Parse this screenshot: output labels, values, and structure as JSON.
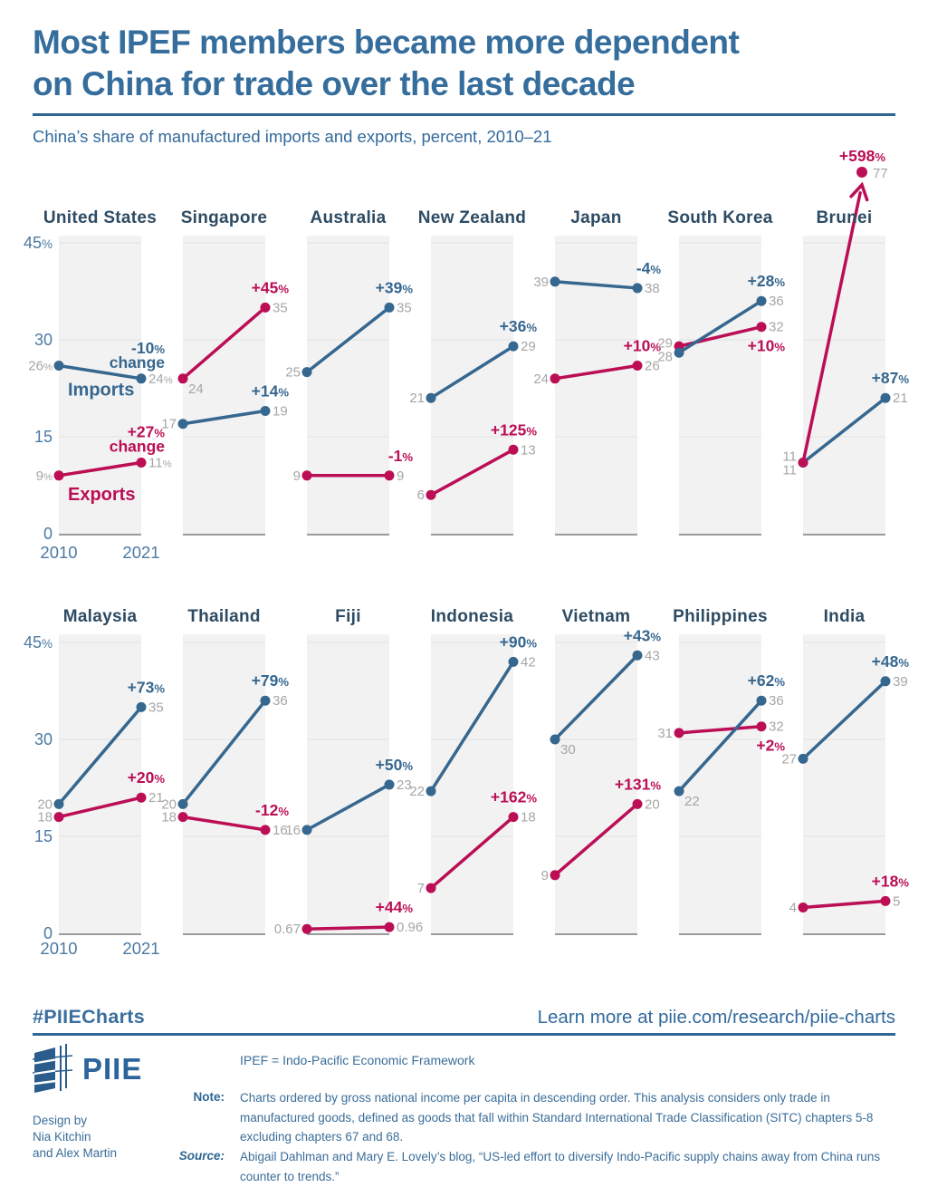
{
  "header": {
    "title_line1": "Most IPEF members became more dependent",
    "title_line2": "on China for trade over the last decade",
    "subtitle": "China’s share of manufactured imports and exports, percent, 2010–21"
  },
  "chart_data": {
    "type": "line",
    "subtype": "slope-small-multiples",
    "x": [
      "2010",
      "2021"
    ],
    "ylim": [
      0,
      45
    ],
    "unit": "percent",
    "grid": true,
    "axis": {
      "ticks": [
        45,
        30,
        15,
        0
      ],
      "tick_labels": [
        "45%",
        "30",
        "15",
        "0"
      ],
      "x_labels": [
        "2010",
        "2021"
      ]
    },
    "series_colors": {
      "imports": "#36678f",
      "exports": "#bb0e55"
    },
    "legend": {
      "imports": "Imports",
      "exports": "Exports"
    },
    "rows": [
      {
        "panels": [
          {
            "country": "United States",
            "imports": {
              "start": 26,
              "end": 24,
              "start_label": "26%",
              "end_label": "24%",
              "change": "-10%",
              "change_word": "change",
              "series_label": "Imports"
            },
            "exports": {
              "start": 9,
              "end": 11,
              "start_label": "9%",
              "end_label": "11%",
              "change": "+27%",
              "change_word": "change",
              "series_label": "Exports"
            }
          },
          {
            "country": "Singapore",
            "imports": {
              "start": 17,
              "end": 19,
              "start_label": "17",
              "end_label": "19",
              "change": "+14%"
            },
            "exports": {
              "start": 24,
              "end": 35,
              "start_label": "24",
              "end_label": "35",
              "change": "+45%",
              "start_label_below": true
            }
          },
          {
            "country": "Australia",
            "imports": {
              "start": 25,
              "end": 35,
              "start_label": "25",
              "end_label": "35",
              "change": "+39%"
            },
            "exports": {
              "start": 9,
              "end": 9,
              "start_label": "9",
              "end_label": "9",
              "change": "-1%"
            }
          },
          {
            "country": "New Zealand",
            "imports": {
              "start": 21,
              "end": 29,
              "start_label": "21",
              "end_label": "29",
              "change": "+36%"
            },
            "exports": {
              "start": 6,
              "end": 13,
              "start_label": "6",
              "end_label": "13",
              "change": "+125%"
            }
          },
          {
            "country": "Japan",
            "imports": {
              "start": 39,
              "end": 38,
              "start_label": "39",
              "end_label": "38",
              "change": "-4%"
            },
            "exports": {
              "start": 24,
              "end": 26,
              "start_label": "24",
              "end_label": "26",
              "change": "+10%"
            }
          },
          {
            "country": "South Korea",
            "imports": {
              "start": 28,
              "end": 36,
              "start_label": "28",
              "end_label": "36",
              "change": "+28%"
            },
            "exports": {
              "start": 29,
              "end": 32,
              "start_label": "29",
              "end_label": "32",
              "change": "+10%",
              "change_below": true
            }
          },
          {
            "country": "Brunei",
            "imports": {
              "start": 11,
              "end": 21,
              "start_label": "11",
              "end_label": "21",
              "change": "+87%"
            },
            "exports": {
              "start": 11,
              "end": 77,
              "start_label": "11",
              "end_label": "77",
              "change": "+598%",
              "off_scale": true,
              "on_top": true
            }
          }
        ]
      },
      {
        "panels": [
          {
            "country": "Malaysia",
            "imports": {
              "start": 20,
              "end": 35,
              "start_label": "20",
              "end_label": "35",
              "change": "+73%"
            },
            "exports": {
              "start": 18,
              "end": 21,
              "start_label": "18",
              "end_label": "21",
              "change": "+20%"
            }
          },
          {
            "country": "Thailand",
            "imports": {
              "start": 20,
              "end": 36,
              "start_label": "20",
              "end_label": "36",
              "change": "+79%"
            },
            "exports": {
              "start": 18,
              "end": 16,
              "start_label": "18",
              "end_label": "16",
              "change": "-12%"
            }
          },
          {
            "country": "Fiji",
            "imports": {
              "start": 16,
              "end": 23,
              "start_label": "16",
              "end_label": "23",
              "change": "+50%"
            },
            "exports": {
              "start": 0.67,
              "end": 0.96,
              "start_label": "0.67",
              "end_label": "0.96",
              "change": "+44%"
            }
          },
          {
            "country": "Indonesia",
            "imports": {
              "start": 22,
              "end": 42,
              "start_label": "22",
              "end_label": "42",
              "change": "+90%"
            },
            "exports": {
              "start": 7,
              "end": 18,
              "start_label": "7",
              "end_label": "18",
              "change": "+162%"
            }
          },
          {
            "country": "Vietnam",
            "imports": {
              "start": 30,
              "end": 43,
              "start_label": "30",
              "end_label": "43",
              "change": "+43%",
              "start_label_below": true
            },
            "exports": {
              "start": 9,
              "end": 20,
              "start_label": "9",
              "end_label": "20",
              "change": "+131%"
            }
          },
          {
            "country": "Philippines",
            "imports": {
              "start": 22,
              "end": 36,
              "start_label": "22",
              "end_label": "36",
              "change": "+62%",
              "start_label_below": true
            },
            "exports": {
              "start": 31,
              "end": 32,
              "start_label": "31",
              "end_label": "32",
              "change": "+2%",
              "change_below": true
            }
          },
          {
            "country": "India",
            "imports": {
              "start": 27,
              "end": 39,
              "start_label": "27",
              "end_label": "39",
              "change": "+48%"
            },
            "exports": {
              "start": 4,
              "end": 5,
              "start_label": "4",
              "end_label": "5",
              "change": "+18%"
            }
          }
        ]
      }
    ]
  },
  "footer": {
    "hashtag": "#PIIECharts",
    "learn_more": "Learn more at piie.com/research/piie-charts",
    "logo_text": "PIIE",
    "design_by_line1": "Design by",
    "design_by_line2": "Nia Kitchin",
    "design_by_line3": "and Alex Martin",
    "ipef_line": "IPEF = Indo-Pacific Economic Framework",
    "note_label": "Note:",
    "note_text": "Charts ordered by gross national income per capita in descending order. This analysis considers only trade in manufactured goods, defined as goods that fall within Standard International Trade Classification (SITC) chapters 5-8 excluding chapters 67 and 68.",
    "source_label": "Source:",
    "source_text": "Abigail Dahlman and Mary E. Lovely’s blog, “US-led effort to diversify Indo-Pacific supply chains away from China runs counter to trends.”"
  }
}
